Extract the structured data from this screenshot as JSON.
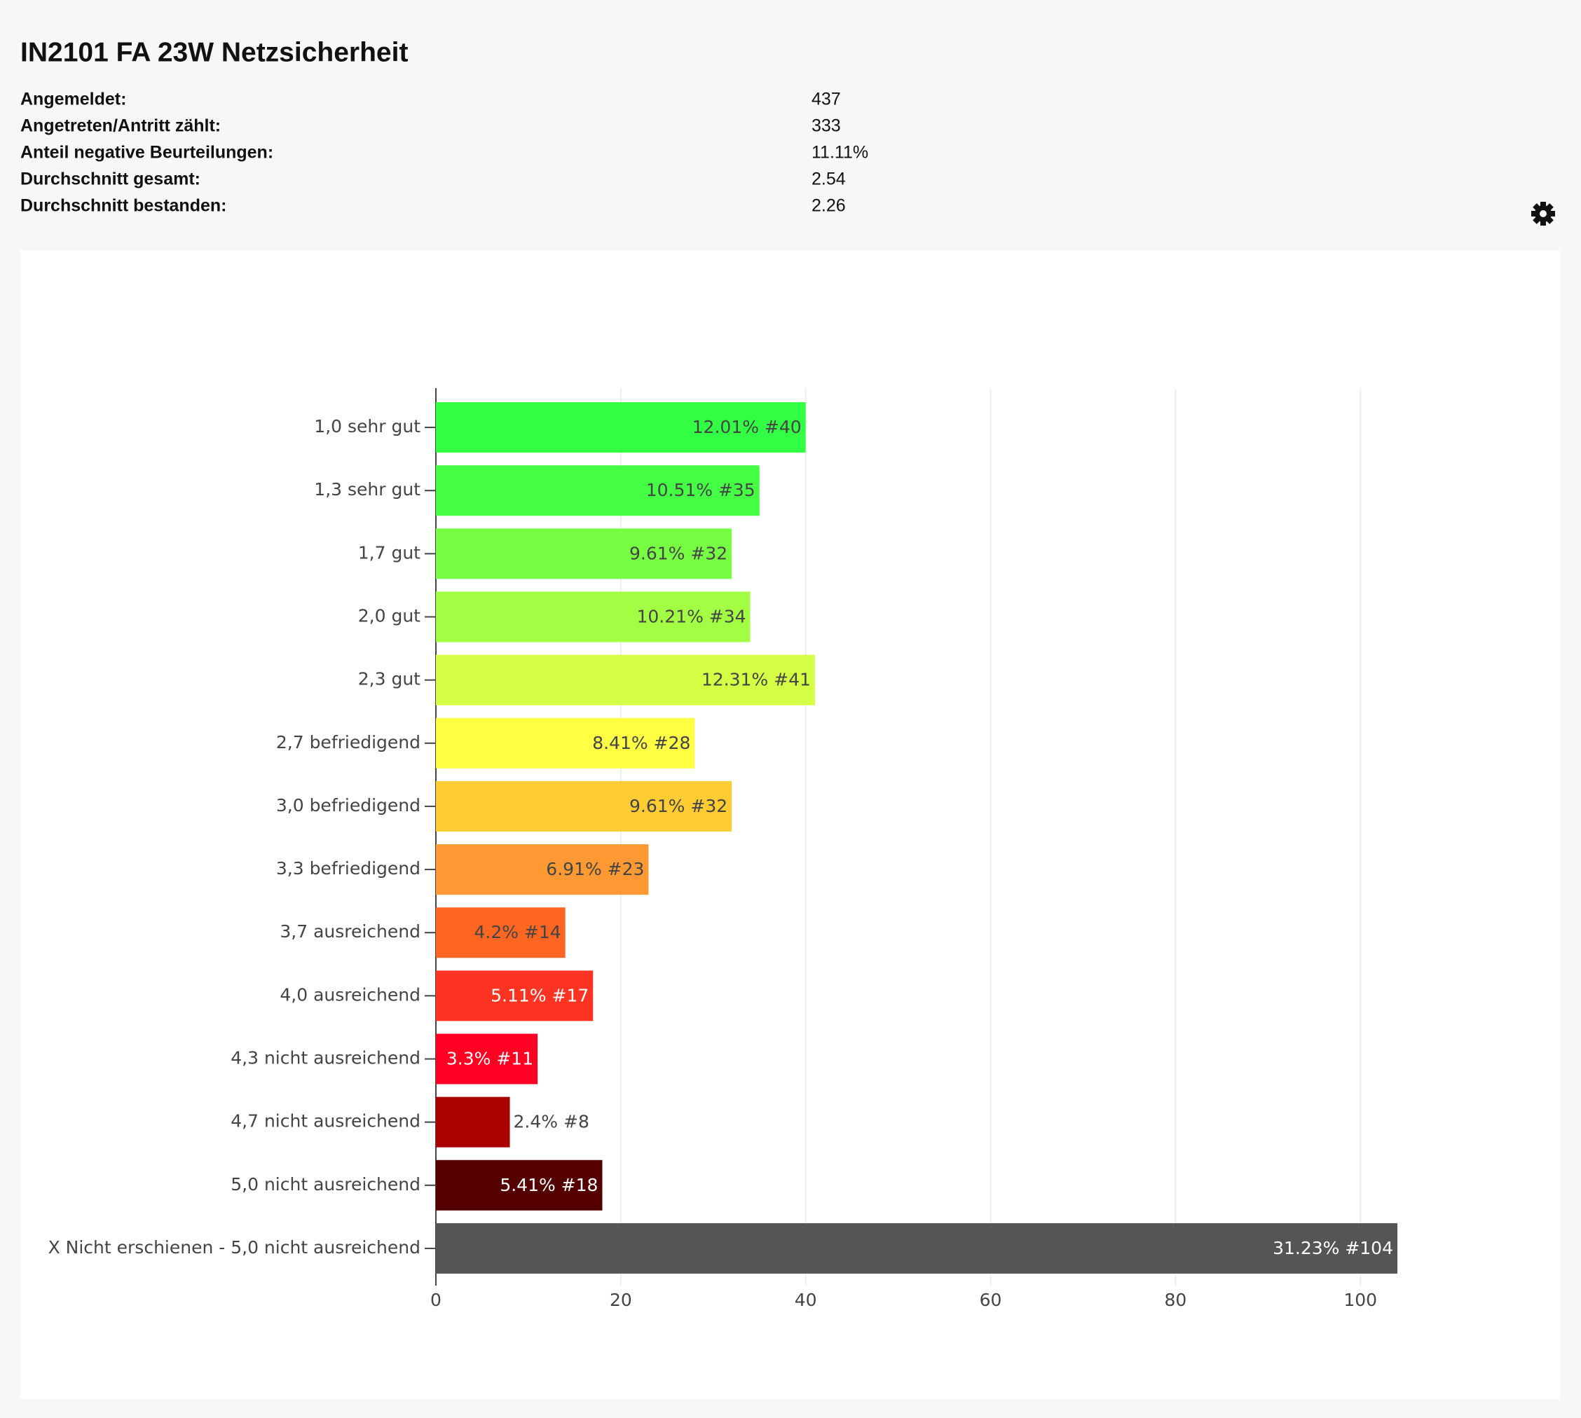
{
  "header": {
    "title": "IN2101 FA 23W Netzsicherheit",
    "stats": [
      {
        "label": "Angemeldet:",
        "value": 437
      },
      {
        "label": "Angetreten/Antritt zählt:",
        "value": 333
      },
      {
        "label": "Anteil negative Beurteilungen:",
        "value": "11.11%"
      },
      {
        "label": "Durchschnitt gesamt:",
        "value": 2.54
      },
      {
        "label": "Durchschnitt bestanden:",
        "value": 2.26
      }
    ]
  },
  "chart_data": {
    "type": "bar",
    "orientation": "horizontal",
    "categories": [
      "1,0 sehr gut",
      "1,3 sehr gut",
      "1,7 gut",
      "2,0 gut",
      "2,3 gut",
      "2,7 befriedigend",
      "3,0 befriedigend",
      "3,3 befriedigend",
      "3,7 ausreichend",
      "4,0 ausreichend",
      "4,3 nicht ausreichend",
      "4,7 nicht ausreichend",
      "5,0 nicht ausreichend",
      "X Nicht erschienen - 5,0 nicht ausreichend"
    ],
    "values": [
      40,
      35,
      32,
      34,
      41,
      28,
      32,
      23,
      14,
      17,
      11,
      8,
      18,
      104
    ],
    "value_labels": [
      "12.01% #40",
      "10.51% #35",
      "9.61% #32",
      "10.21% #34",
      "12.31% #41",
      "8.41% #28",
      "9.61% #32",
      "6.91% #23",
      "4.2% #14",
      "5.11% #17",
      "3.3% #11",
      "2.4% #8",
      "5.41% #18",
      "31.23% #104"
    ],
    "colors": [
      "#33ff44",
      "#44ff44",
      "#77ff44",
      "#a2ff44",
      "#d4ff44",
      "#ffff44",
      "#ffcc33",
      "#ff9933",
      "#ff6622",
      "#ff3322",
      "#ff0022",
      "#aa0000",
      "#550000",
      "#555555"
    ],
    "xlim": [
      0,
      104
    ],
    "xticks": [
      0,
      20,
      40,
      60,
      80,
      100
    ],
    "grid": true
  }
}
